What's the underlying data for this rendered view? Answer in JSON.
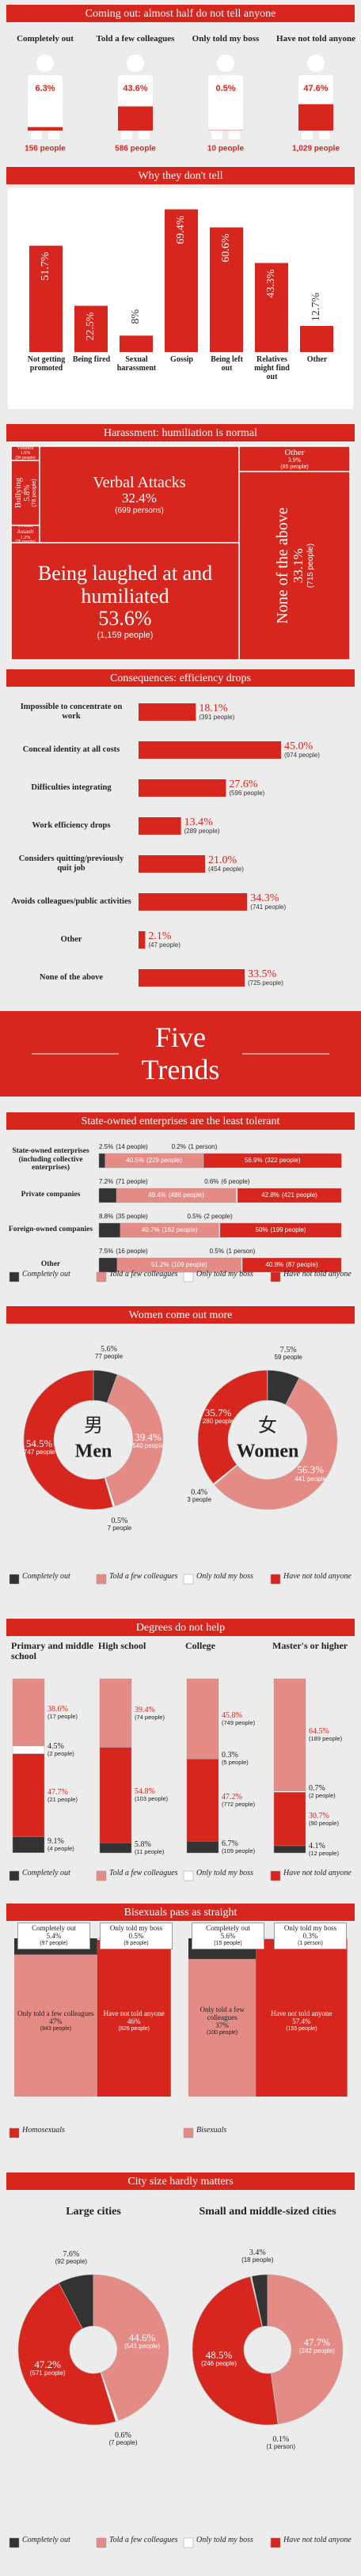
{
  "banner": {
    "title": "Five Trends"
  },
  "chart_data": [
    {
      "type": "pictogram",
      "title": "Coming out: almost half do not tell anyone",
      "color": "#d7261e",
      "categories": [
        "Completely out",
        "Told a few colleagues",
        "Only told my boss",
        "Have not told anyone"
      ],
      "values": [
        6.3,
        43.6,
        0.5,
        47.6
      ],
      "value_labels": [
        "6.3%",
        "43.6%",
        "0.5%",
        "47.6%"
      ],
      "people": [
        "156 people",
        "586 people",
        "10 people",
        "1,029 people"
      ]
    },
    {
      "type": "bar",
      "title": "Why they don't tell",
      "color": "#d7261e",
      "categories": [
        "Not getting promoted",
        "Being fired",
        "Sexual harassment",
        "Gossip",
        "Being left out",
        "Relatives might find out",
        "Other"
      ],
      "values": [
        51.7,
        22.5,
        8,
        69.4,
        60.6,
        43.3,
        12.7
      ],
      "value_labels": [
        "51.7%",
        "22.5%",
        "8%",
        "69.4%",
        "60.6%",
        "43.3%",
        "12.7%"
      ]
    },
    {
      "type": "treemap",
      "title": "Harassment: humiliation is normal",
      "color": "#d7261e",
      "categories": [
        "Violence",
        "Bullying",
        "Sexual Assault",
        "Verbal Attacks",
        "Other",
        "None of the above",
        "Being laughed at and humiliated"
      ],
      "values": [
        1.6,
        5.8,
        1.2,
        32.4,
        3.9,
        33.1,
        53.6
      ],
      "value_labels": [
        "1.6%",
        "5.8%",
        "1.2%",
        "32.4%",
        "3.9%",
        "33.1%",
        "53.6%"
      ],
      "people": [
        "(34 people)",
        "(78 people)",
        "(26 people)",
        "(699 persons)",
        "(85 people)",
        "(715 people)",
        "(1,159 people)"
      ]
    },
    {
      "type": "hbar",
      "title": "Consequences: efficiency drops",
      "color": "#d7261e",
      "categories": [
        "Impossible to concentrate on work",
        "Conceal identity at all costs",
        "Difficulties integrating",
        "Work efficiency drops",
        "Considers quitting/previously quit job",
        "Avoids colleagues/public activities",
        "Other",
        "None of the above"
      ],
      "values": [
        18.1,
        45.0,
        27.6,
        13.4,
        21.0,
        34.3,
        2.1,
        33.5
      ],
      "value_labels": [
        "18.1%",
        "45.0%",
        "27.6%",
        "13.4%",
        "21.0%",
        "34.3%",
        "2.1%",
        "33.5%"
      ],
      "people": [
        "(391 people)",
        "(974 people)",
        "(596 people)",
        "(289 people)",
        "(454 people)",
        "(741 people)",
        "(47 people)",
        "(725 people)"
      ]
    },
    {
      "type": "stacked_hbar",
      "title": "State-owned enterprises are the least tolerant",
      "categories": [
        "State-owned enterprises (including collective enterprises)",
        "Private companies",
        "Foreign-owned companies",
        "Other"
      ],
      "series": [
        {
          "name": "Completely out",
          "color": "#333333",
          "values": [
            2.5,
            7.2,
            8.8,
            7.5
          ],
          "value_labels": [
            "2.5%",
            "7.2%",
            "8.8%",
            "7.5%"
          ],
          "people": [
            "(14 people)",
            "(71 people)",
            "(35 people)",
            "(16 people)"
          ]
        },
        {
          "name": "Told a few colleagues",
          "color": "#e48b86",
          "values": [
            40.5,
            49.4,
            40.7,
            51.2
          ],
          "value_labels": [
            "40.5%",
            "49.4%",
            "40.7%",
            "51.2%"
          ],
          "people": [
            "(229 people)",
            "(486 people)",
            "(162 people)",
            "(109 people)"
          ]
        },
        {
          "name": "Only told my boss",
          "color": "#ffffff",
          "values": [
            0.2,
            0.6,
            0.5,
            0.5
          ],
          "value_labels": [
            "0.2%",
            "0.6%",
            "0.5%",
            "0.5%"
          ],
          "people": [
            "(1 person)",
            "(6 people)",
            "(2 people)",
            "(1 person)"
          ]
        },
        {
          "name": "Have not told anyone",
          "color": "#d7261e",
          "values": [
            56.9,
            42.8,
            50,
            40.8
          ],
          "value_labels": [
            "56.9%",
            "42.8%",
            "50%",
            "40.8%"
          ],
          "people": [
            "(322 people)",
            "(421 people)",
            "(199 people)",
            "(87 people)"
          ]
        }
      ]
    },
    {
      "type": "donut",
      "title": "Women come out more",
      "categories": [
        "Completely out",
        "Told a few colleagues",
        "Only told my boss",
        "Have not told anyone"
      ],
      "colors": [
        "#333333",
        "#e48b86",
        "#ffffff",
        "#d7261e"
      ],
      "pies": [
        {
          "center_char": "男",
          "label": "Men",
          "values": [
            5.6,
            39.4,
            0.5,
            54.5
          ],
          "value_labels": [
            "5.6%",
            "39.4%",
            "0.5%",
            "54.5%"
          ],
          "people": [
            "77 people",
            "540 people",
            "7 people",
            "747 people"
          ]
        },
        {
          "center_char": "女",
          "label": "Women",
          "values": [
            7.5,
            56.3,
            0.4,
            35.7
          ],
          "value_labels": [
            "7.5%",
            "56.3%",
            "0.4%",
            "35.7%"
          ],
          "people": [
            "59 people",
            "441 people",
            "3 people",
            "280 people"
          ]
        }
      ]
    },
    {
      "type": "stacked_column",
      "title": "Degrees do not help",
      "categories": [
        "Primary and middle school",
        "High school",
        "College",
        "Master's or higher"
      ],
      "series": [
        {
          "name": "Completely out",
          "color": "#333333",
          "values": [
            9.1,
            5.8,
            6.7,
            4.1
          ],
          "value_labels": [
            "9.1%",
            "5.8%",
            "6.7%",
            "4.1%"
          ],
          "people": [
            "(4 people)",
            "(11 people)",
            "(109 people)",
            "(12 people)"
          ]
        },
        {
          "name": "Told a few colleagues",
          "color": "#e48b86",
          "values": [
            38.6,
            39.4,
            45.8,
            64.5
          ],
          "value_labels": [
            "38.6%",
            "39.4%",
            "45.8%",
            "64.5%"
          ],
          "people": [
            "(17 people)",
            "(74 people)",
            "(749 people)",
            "(189 people)"
          ]
        },
        {
          "name": "Only told my boss",
          "color": "#ffffff",
          "values": [
            4.5,
            null,
            0.3,
            0.7
          ],
          "value_labels": [
            "4.5%",
            null,
            "0.3%",
            "0.7%"
          ],
          "people": [
            "(2 people)",
            null,
            "(5 people)",
            "(2 people)"
          ]
        },
        {
          "name": "Have not told anyone",
          "color": "#d7261e",
          "values": [
            47.7,
            54.8,
            47.2,
            30.7
          ],
          "value_labels": [
            "47.7%",
            "54.8%",
            "47.2%",
            "30.7%"
          ],
          "people": [
            "(21 people)",
            "(103 people)",
            "(772 people)",
            "(90 people)"
          ]
        }
      ]
    },
    {
      "type": "mosaic",
      "title": "Bisexuals pass as straight",
      "categories": [
        "Homosexuals",
        "Bisexuals"
      ],
      "category_colors": [
        "#d7261e",
        "#e48b86"
      ],
      "series": [
        {
          "name": "Completely out",
          "color": "#333333",
          "values": [
            5.4,
            5.6
          ],
          "value_labels": [
            "5.4%",
            "5.6%"
          ],
          "people": [
            "(97 people)",
            "(15 people)"
          ]
        },
        {
          "name": "Only told my boss",
          "color": "#ffffff",
          "values": [
            0.5,
            0.3
          ],
          "value_labels": [
            "0.5%",
            "0.3%"
          ],
          "people": [
            "(9 people)",
            "(1 person)"
          ]
        },
        {
          "name": "Only told a few colleagues",
          "color": "#e48b86",
          "values": [
            47,
            37
          ],
          "value_labels": [
            "47%",
            "37%"
          ],
          "people": [
            "(843 people)",
            "(100 people)"
          ]
        },
        {
          "name": "Have not told anyone",
          "color": "#d7261e",
          "values": [
            46,
            57.4
          ],
          "value_labels": [
            "46%",
            "57.4%"
          ],
          "people": [
            "(826 people)",
            "(155 people)"
          ]
        }
      ]
    },
    {
      "type": "donut",
      "title": "City size hardly matters",
      "categories": [
        "Completely out",
        "Told a few colleagues",
        "Only told my boss",
        "Have not told anyone"
      ],
      "colors": [
        "#333333",
        "#e48b86",
        "#ffffff",
        "#d7261e"
      ],
      "pies": [
        {
          "label": "Large cities",
          "values": [
            7.6,
            44.6,
            0.6,
            47.2
          ],
          "value_labels": [
            "7.6%",
            "44.6%",
            "0.6%",
            "47.2%"
          ],
          "people": [
            "(92 people)",
            "(541 people)",
            "(7 people)",
            "(571 people)"
          ]
        },
        {
          "label": "Small and middle-sized cities",
          "values": [
            3.4,
            47.7,
            0.1,
            48.5
          ],
          "value_labels": [
            "3.4%",
            "47.7%",
            "0.1%",
            "48.5%"
          ],
          "people": [
            "(18 people)",
            "(242 people)",
            "(1 person)",
            "(246 people)"
          ]
        }
      ]
    }
  ]
}
